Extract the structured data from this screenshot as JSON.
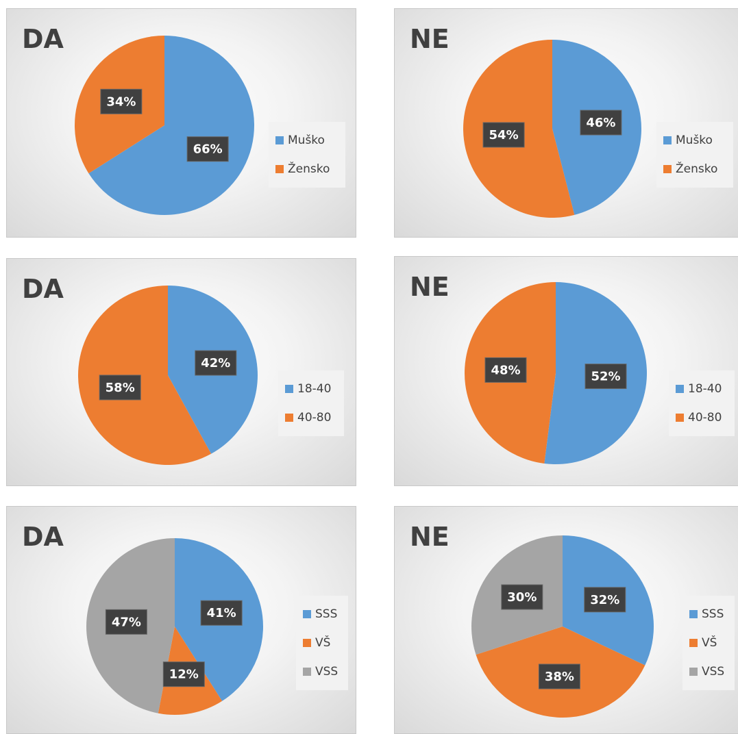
{
  "chart_data": [
    {
      "type": "pie",
      "title": "DA",
      "categories": [
        "Muško",
        "Žensko"
      ],
      "values": [
        66,
        34
      ],
      "labels": [
        "66%",
        "34%"
      ],
      "colors": [
        "#5b9bd5",
        "#ed7d31"
      ],
      "legend": "right"
    },
    {
      "type": "pie",
      "title": "NE",
      "categories": [
        "Muško",
        "Žensko"
      ],
      "values": [
        46,
        54
      ],
      "labels": [
        "46%",
        "54%"
      ],
      "colors": [
        "#5b9bd5",
        "#ed7d31"
      ],
      "legend": "right"
    },
    {
      "type": "pie",
      "title": "DA",
      "categories": [
        "18-40",
        "40-80"
      ],
      "values": [
        42,
        58
      ],
      "labels": [
        "42%",
        "58%"
      ],
      "colors": [
        "#5b9bd5",
        "#ed7d31"
      ],
      "legend": "right"
    },
    {
      "type": "pie",
      "title": "NE",
      "categories": [
        "18-40",
        "40-80"
      ],
      "values": [
        52,
        48
      ],
      "labels": [
        "52%",
        "48%"
      ],
      "colors": [
        "#5b9bd5",
        "#ed7d31"
      ],
      "legend": "right"
    },
    {
      "type": "pie",
      "title": "DA",
      "categories": [
        "SSS",
        "VŠ",
        "VSS"
      ],
      "values": [
        41,
        12,
        47
      ],
      "labels": [
        "41%",
        "12%",
        "47%"
      ],
      "colors": [
        "#5b9bd5",
        "#ed7d31",
        "#a5a5a5"
      ],
      "legend": "right"
    },
    {
      "type": "pie",
      "title": "NE",
      "categories": [
        "SSS",
        "VŠ",
        "VSS"
      ],
      "values": [
        32,
        38,
        30
      ],
      "labels": [
        "32%",
        "38%",
        "30%"
      ],
      "colors": [
        "#5b9bd5",
        "#ed7d31",
        "#a5a5a5"
      ],
      "legend": "right"
    }
  ]
}
